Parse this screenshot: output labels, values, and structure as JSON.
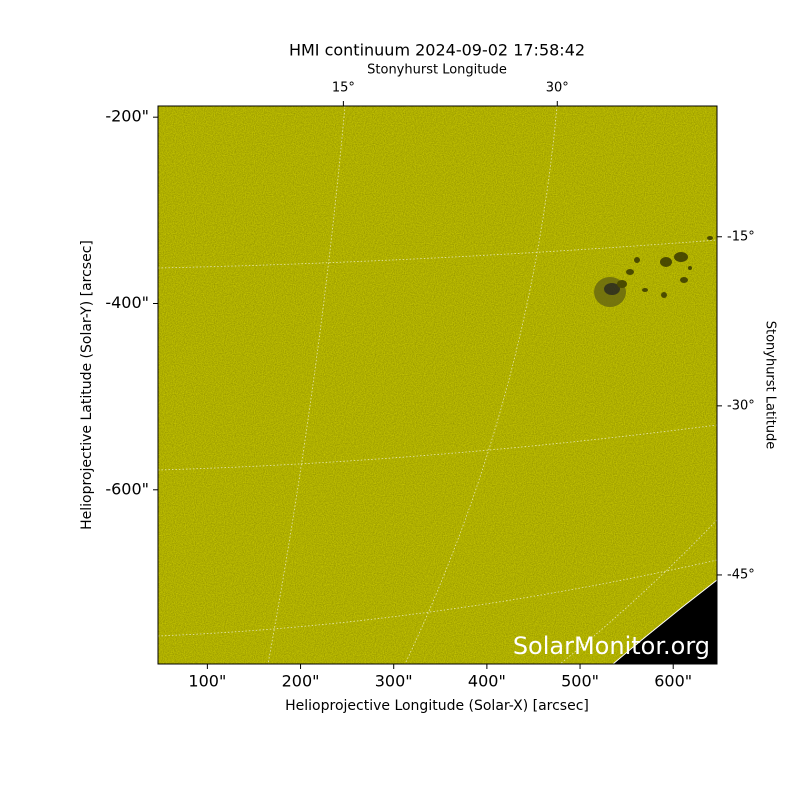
{
  "chart_data": {
    "type": "image",
    "title": "HMI continuum 2024-09-02 17:58:42",
    "xlabel": "Helioprojective Longitude (Solar-X) [arcsec]",
    "ylabel": "Helioprojective Latitude (Solar-Y) [arcsec]",
    "x2label": "Stonyhurst Longitude",
    "y2label": "Stonyhurst Latitude",
    "xlim": [
      47,
      647
    ],
    "ylim": [
      -787,
      -188
    ],
    "xticks": [
      {
        "value": 100,
        "label": "100\""
      },
      {
        "value": 200,
        "label": "200\""
      },
      {
        "value": 300,
        "label": "300\""
      },
      {
        "value": 400,
        "label": "400\""
      },
      {
        "value": 500,
        "label": "500\""
      },
      {
        "value": 600,
        "label": "600\""
      }
    ],
    "yticks": [
      {
        "value": -200,
        "label": "-200\""
      },
      {
        "value": -400,
        "label": "-400\""
      },
      {
        "value": -600,
        "label": "-600\""
      }
    ],
    "x2lim": [
      2,
      41.2
    ],
    "x2ticks": [
      {
        "value": 15,
        "label": "15°"
      },
      {
        "value": 30,
        "label": "30°"
      }
    ],
    "y2lim": [
      -3.4,
      -52.9
    ],
    "y2ticks": [
      {
        "value": -15,
        "label": "-15°"
      },
      {
        "value": -30,
        "label": "-30°"
      },
      {
        "value": -45,
        "label": "-45°"
      }
    ],
    "watermark": "SolarMonitor.org",
    "color": "#c8c800"
  }
}
